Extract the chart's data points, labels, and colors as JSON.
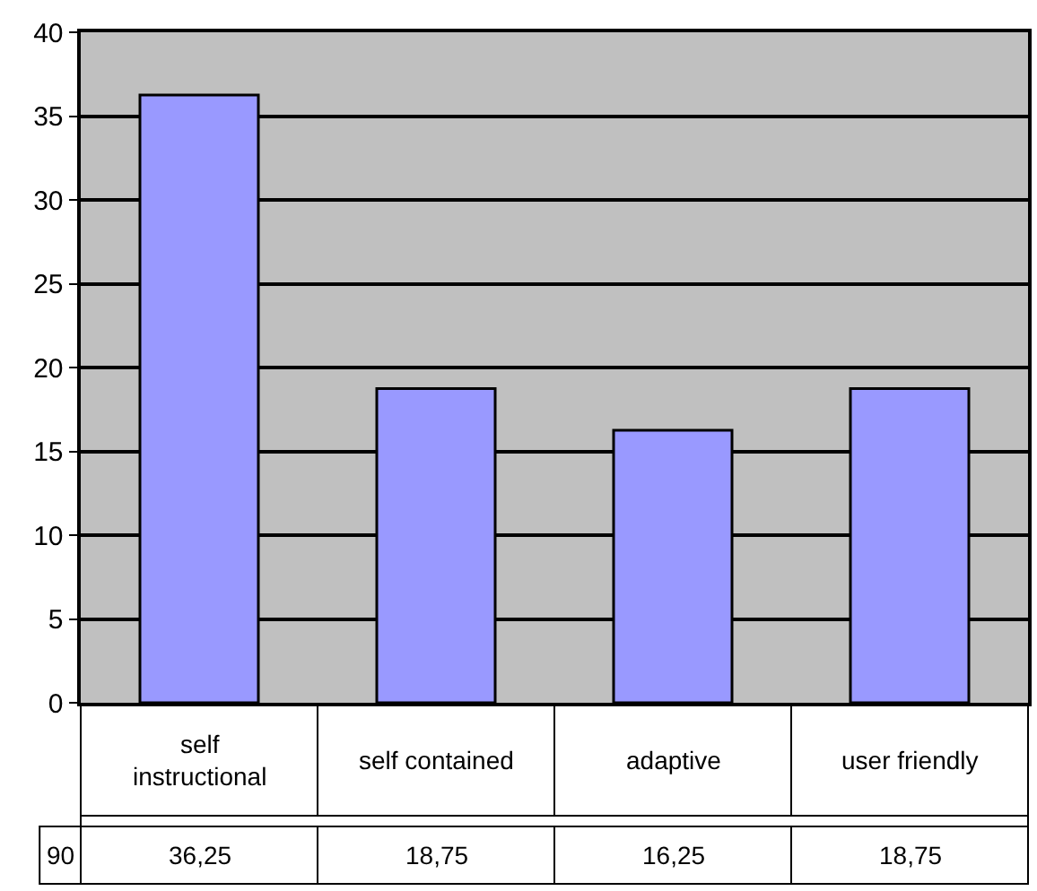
{
  "chart_data": {
    "type": "bar",
    "categories": [
      "self instructional",
      "self contained",
      "adaptive",
      "user friendly"
    ],
    "series": [
      {
        "name": "90",
        "color": "#9999ff",
        "values": [
          36.25,
          18.75,
          16.25,
          18.75
        ],
        "value_labels": [
          "36,25",
          "18,75",
          "16,25",
          "18,75"
        ]
      }
    ],
    "ylim": [
      0,
      40
    ],
    "yticks": [
      0,
      5,
      10,
      15,
      20,
      25,
      30,
      35,
      40
    ],
    "grid": "y",
    "legend": false
  }
}
